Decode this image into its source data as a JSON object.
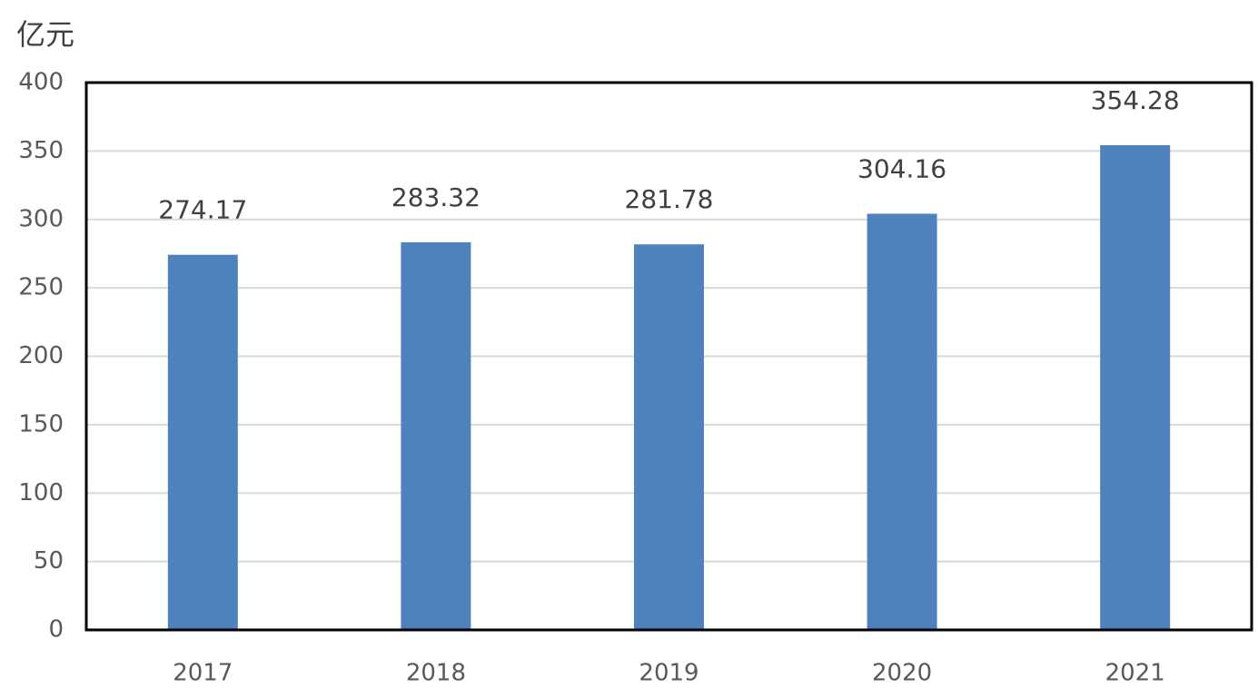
{
  "chart_data": {
    "type": "bar",
    "y_label": "亿元",
    "categories": [
      "2017",
      "2018",
      "2019",
      "2020",
      "2021"
    ],
    "values": [
      274.17,
      283.32,
      281.78,
      304.16,
      354.28
    ],
    "color": "#4f81bd",
    "ylim": [
      0,
      400
    ],
    "yticks": [
      0,
      50,
      100,
      150,
      200,
      250,
      300,
      350,
      400
    ],
    "grid": true
  }
}
